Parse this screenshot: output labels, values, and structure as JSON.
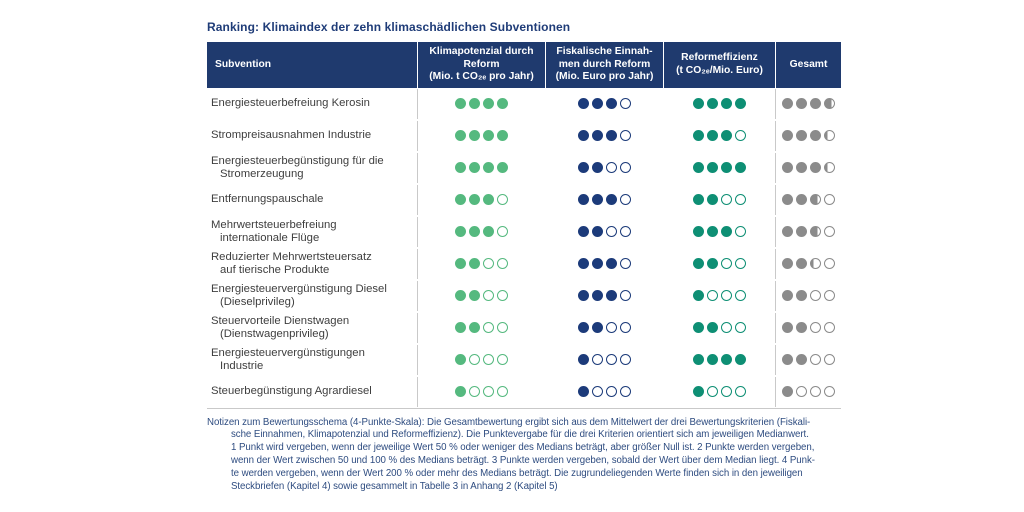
{
  "title": "Ranking: Klimaindex der zehn klimaschädlichen Subventionen",
  "colors": {
    "header_bg": "#1F3A6E",
    "navy": "#1C3B7A",
    "green": "#55B97F",
    "teal": "#0E8F74",
    "gray": "#8B8B8B",
    "divider": "#C9C9C9",
    "label_text": "#3E3E3E",
    "note_text": "#2E4C80"
  },
  "table": {
    "columns": [
      {
        "label": "Subvention",
        "unit": ""
      },
      {
        "label": "Klimapotenzial durch\nReform",
        "unit": "(Mio. t CO₂ₑ pro Jahr)"
      },
      {
        "label": "Fiskalische Einnah-\nmen durch Reform",
        "unit": "(Mio. Euro pro Jahr)"
      },
      {
        "label": "Reformeffizienz",
        "unit": "(t CO₂ₑ/Mio. Euro)"
      },
      {
        "label": "Gesamt",
        "unit": ""
      }
    ]
  },
  "chart_data": {
    "type": "table",
    "title": "Ranking: Klimaindex der zehn klimaschädlichen Subventionen",
    "scale": {
      "min": 0,
      "max": 4,
      "unit": "Punkte (4-Punkte-Skala)"
    },
    "criteria": [
      "Klimapotenzial durch Reform (Mio. t CO₂ₑ pro Jahr)",
      "Fiskalische Einnahmen durch Reform (Mio. Euro pro Jahr)",
      "Reformeffizienz (t CO₂ₑ/Mio. Euro)",
      "Gesamt"
    ],
    "rows": [
      {
        "name": "Energiesteuerbefreiung Kerosin",
        "name_lines": "Energiesteuerbefreiung Kerosin",
        "klimapotenzial": 4,
        "fiskalische_einnahmen": 3,
        "reformeffizienz": 4,
        "gesamt": 3.7
      },
      {
        "name": "Strompreisausnahmen Industrie",
        "name_lines": "Strompreisausnahmen Industrie",
        "klimapotenzial": 4,
        "fiskalische_einnahmen": 3,
        "reformeffizienz": 3,
        "gesamt": 3.3
      },
      {
        "name": "Energiesteuerbegünstigung für die Stromerzeugung",
        "name_lines": "Energiesteuerbegünstigung für die\nStromerzeugung",
        "klimapotenzial": 4,
        "fiskalische_einnahmen": 2,
        "reformeffizienz": 4,
        "gesamt": 3.3
      },
      {
        "name": "Entfernungspauschale",
        "name_lines": "Entfernungspauschale",
        "klimapotenzial": 3,
        "fiskalische_einnahmen": 3,
        "reformeffizienz": 2,
        "gesamt": 2.7
      },
      {
        "name": "Mehrwertsteuerbefreiung internationale Flüge",
        "name_lines": "Mehrwertsteuerbefreiung\ninternationale Flüge",
        "klimapotenzial": 3,
        "fiskalische_einnahmen": 2,
        "reformeffizienz": 3,
        "gesamt": 2.7
      },
      {
        "name": "Reduzierter Mehrwertsteuersatz auf tierische Produkte",
        "name_lines": "Reduzierter Mehrwertsteuersatz\nauf tierische Produkte",
        "klimapotenzial": 2,
        "fiskalische_einnahmen": 3,
        "reformeffizienz": 2,
        "gesamt": 2.3
      },
      {
        "name": "Energiesteuervergünstigung Diesel (Dieselprivileg)",
        "name_lines": "Energiesteuervergünstigung Diesel\n(Dieselprivileg)",
        "klimapotenzial": 2,
        "fiskalische_einnahmen": 3,
        "reformeffizienz": 1,
        "gesamt": 2
      },
      {
        "name": "Steuervorteile Dienstwagen (Dienstwagenprivileg)",
        "name_lines": "Steuervorteile Dienstwagen\n(Dienstwagenprivileg)",
        "klimapotenzial": 2,
        "fiskalische_einnahmen": 2,
        "reformeffizienz": 2,
        "gesamt": 2
      },
      {
        "name": "Energiesteuervergünstigungen Industrie",
        "name_lines": "Energiesteuervergünstigungen\nIndustrie",
        "klimapotenzial": 1,
        "fiskalische_einnahmen": 1,
        "reformeffizienz": 4,
        "gesamt": 2
      },
      {
        "name": "Steuerbegünstigung Agrardiesel",
        "name_lines": "Steuerbegünstigung Agrardiesel",
        "klimapotenzial": 1,
        "fiskalische_einnahmen": 1,
        "reformeffizienz": 1,
        "gesamt": 1
      }
    ]
  },
  "footnote_lines": [
    "Notizen zum Bewertungsschema (4-Punkte-Skala): Die Gesamtbewertung ergibt sich aus dem Mittelwert der drei Bewertungskriterien (Fiskali-",
    "sche Einnahmen, Klimapotenzial und Reformeffizienz). Die Punktevergabe für die drei Kriterien orientiert sich am jeweiligen Medianwert.",
    "1 Punkt wird vergeben, wenn der jeweilige Wert 50 % oder weniger des Medians beträgt, aber größer Null ist. 2 Punkte werden vergeben,",
    "wenn der Wert zwischen 50 und 100 % des Medians beträgt. 3 Punkte werden vergeben, sobald der Wert über dem Median liegt. 4 Punk-",
    "te werden vergeben, wenn der Wert 200 % oder mehr des Medians beträgt. Die zugrundeliegenden Werte finden sich in den jeweiligen",
    "Steckbriefen (Kapitel 4) sowie gesammelt in Tabelle 3 in Anhang 2 (Kapitel 5)"
  ]
}
